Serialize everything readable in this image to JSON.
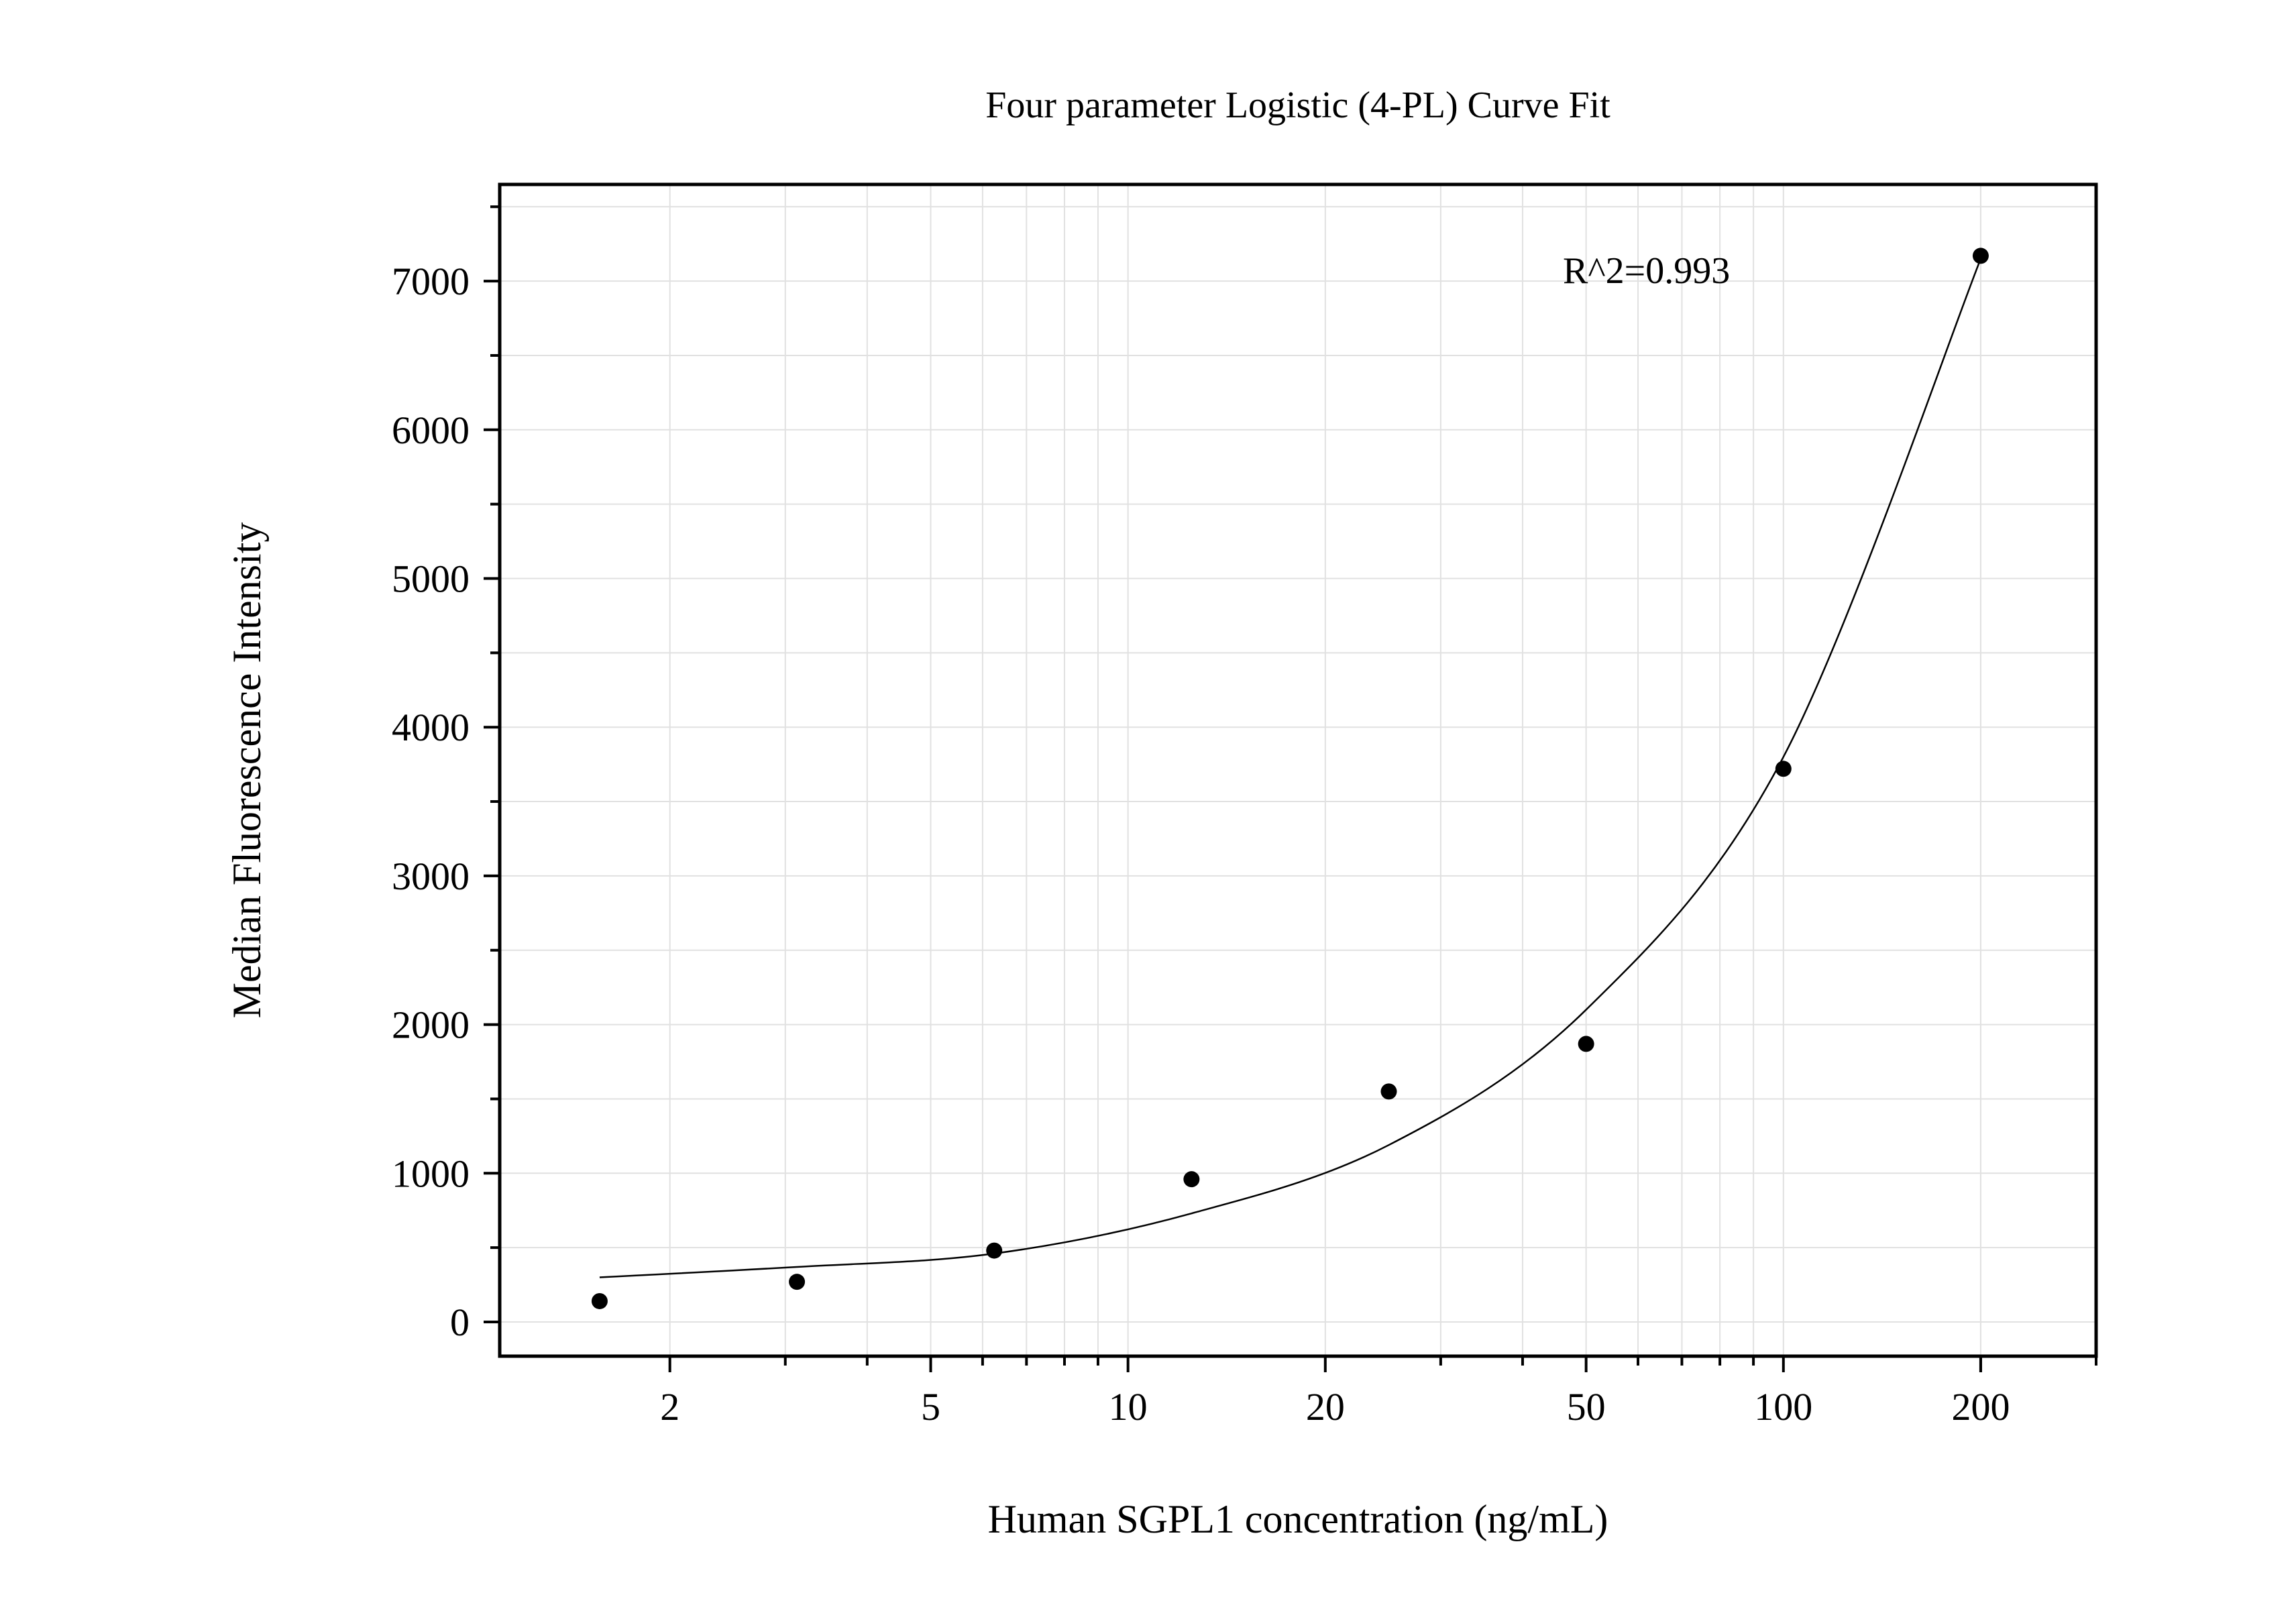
{
  "chart_data": {
    "type": "scatter",
    "title": "Four parameter Logistic (4-PL) Curve Fit",
    "xlabel": "Human SGPL1 concentration (ng/mL)",
    "ylabel": "Median Fluorescence Intensity",
    "x_scale": "log",
    "xlim": [
      1.1,
      300
    ],
    "ylim": [
      -230,
      7650
    ],
    "x_ticks": [
      2,
      5,
      10,
      20,
      50,
      100,
      200
    ],
    "x_tick_labels": [
      "2",
      "5",
      "10",
      "20",
      "50",
      "100",
      "200"
    ],
    "y_ticks": [
      0,
      1000,
      2000,
      3000,
      4000,
      5000,
      6000,
      7000
    ],
    "y_tick_labels": [
      "0",
      "1000",
      "2000",
      "3000",
      "4000",
      "5000",
      "6000",
      "7000"
    ],
    "grid": true,
    "annotation": "R^2=0.993",
    "points": {
      "x": [
        1.5625,
        3.125,
        6.25,
        12.5,
        25,
        50,
        100,
        200
      ],
      "y": [
        140,
        270,
        480,
        960,
        1550,
        1870,
        3720,
        7170
      ]
    },
    "fit_curve": {
      "model": "4-PL",
      "x": [
        1.5625,
        3.125,
        6.25,
        12.5,
        25,
        50,
        100,
        200
      ],
      "y": [
        300,
        370,
        460,
        730,
        1190,
        2100,
        3800,
        7150
      ]
    },
    "colors": {
      "point": "#000000",
      "curve": "#000000",
      "grid": "#e1e1e1",
      "frame": "#000000"
    }
  }
}
